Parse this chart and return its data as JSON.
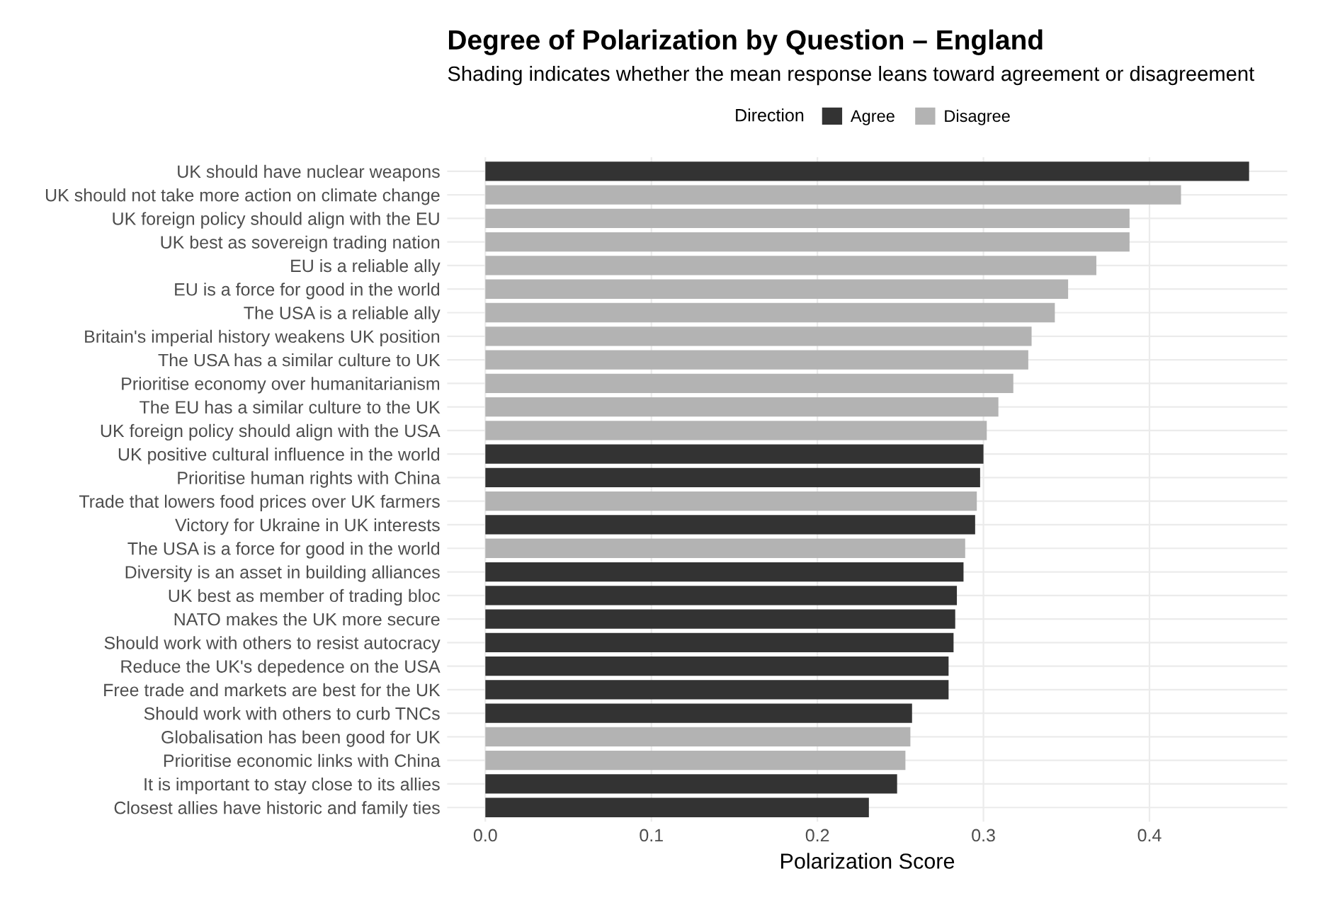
{
  "chart_data": {
    "type": "bar",
    "orientation": "horizontal",
    "title": "Degree of Polarization by Question – England",
    "subtitle": "Shading indicates whether the mean response leans toward agreement or disagreement",
    "xlabel": "Polarization Score",
    "legend_title": "Direction",
    "legend": "top",
    "categories": [
      "UK should have nuclear weapons",
      "UK should not take more action on climate change",
      "UK foreign policy should align with the EU",
      "UK best as sovereign trading nation",
      "EU is a reliable ally",
      "EU is a force for good in the world",
      "The USA is a reliable ally",
      "Britain's imperial history weakens UK position",
      "The USA has a similar culture to UK",
      "Prioritise economy over humanitarianism",
      "The EU has a similar culture to the UK",
      "UK foreign policy should align with the USA",
      "UK positive cultural influence in the world",
      "Prioritise human rights with China",
      "Trade that lowers food prices over UK farmers",
      "Victory for Ukraine in UK interests",
      "The USA is a force for good in the world",
      "Diversity is an asset in building alliances",
      "UK best as member of trading bloc",
      "NATO makes the UK more secure",
      "Should work with others to resist autocracy",
      "Reduce the UK's depedence on the USA",
      "Free trade and markets are best for the UK",
      "Should work with others to curb TNCs",
      "Globalisation has been good for UK",
      "Prioritise economic links with China",
      "It is important to stay close to its allies",
      "Closest allies have historic and family ties"
    ],
    "series": [
      {
        "name": "Agree",
        "color": "#333333",
        "values": [
          0.46,
          null,
          null,
          null,
          null,
          null,
          null,
          null,
          null,
          null,
          null,
          null,
          0.3,
          0.298,
          null,
          0.295,
          null,
          0.288,
          0.284,
          0.283,
          0.282,
          0.279,
          0.279,
          0.257,
          null,
          null,
          0.248,
          0.231
        ]
      },
      {
        "name": "Disagree",
        "color": "#b3b3b3",
        "values": [
          null,
          0.419,
          0.388,
          0.388,
          0.368,
          0.351,
          0.343,
          0.329,
          0.327,
          0.318,
          0.309,
          0.302,
          null,
          null,
          0.296,
          null,
          0.289,
          null,
          null,
          null,
          null,
          null,
          null,
          null,
          0.256,
          0.253,
          null,
          null
        ]
      }
    ],
    "xlim": [
      -0.023,
      0.483
    ],
    "xticks": [
      {
        "value": 0,
        "label": "0.0"
      },
      0.1,
      0.2,
      0.3,
      0.4
    ],
    "grid": true
  }
}
